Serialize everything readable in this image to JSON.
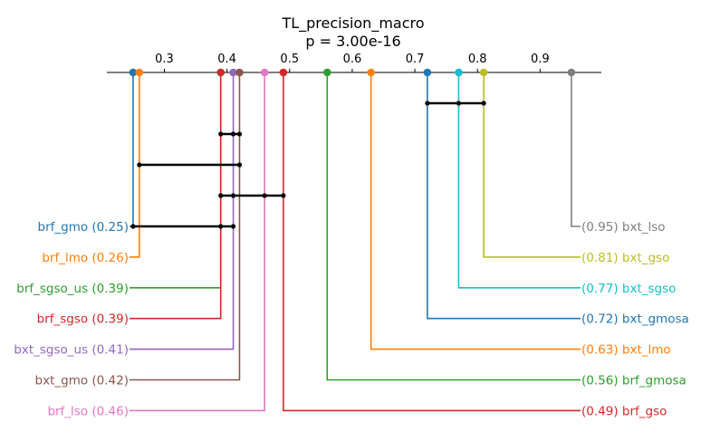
{
  "chart_data": {
    "type": "critical-difference",
    "title": "TL_precision_macro",
    "subtitle": "p = 3.00e-16",
    "xlim": [
      0.2,
      0.99
    ],
    "ticks": [
      0.3,
      0.4,
      0.5,
      0.6,
      0.7,
      0.8,
      0.9
    ],
    "tick_labels": [
      "0.3",
      "0.4",
      "0.5",
      "0.6",
      "0.7",
      "0.8",
      "0.9"
    ],
    "methods": [
      {
        "name": "brf_gmo",
        "value": 0.25,
        "label": "brf_gmo (0.25)",
        "color": "#1f77b4",
        "side": "left"
      },
      {
        "name": "brf_lmo",
        "value": 0.26,
        "label": "brf_lmo (0.26)",
        "color": "#ff7f0e",
        "side": "left"
      },
      {
        "name": "brf_sgso_us",
        "value": 0.39,
        "label": "brf_sgso_us (0.39)",
        "color": "#2ca02c",
        "side": "left"
      },
      {
        "name": "brf_sgso",
        "value": 0.39,
        "label": "brf_sgso (0.39)",
        "color": "#d62728",
        "side": "left"
      },
      {
        "name": "bxt_sgso_us",
        "value": 0.41,
        "label": "bxt_sgso_us (0.41)",
        "color": "#9467bd",
        "side": "left"
      },
      {
        "name": "bxt_gmo",
        "value": 0.42,
        "label": "bxt_gmo (0.42)",
        "color": "#8c564b",
        "side": "left"
      },
      {
        "name": "brf_lso",
        "value": 0.46,
        "label": "brf_lso (0.46)",
        "color": "#e377c2",
        "side": "left"
      },
      {
        "name": "bxt_lso",
        "value": 0.95,
        "label": "(0.95) bxt_lso",
        "color": "#7f7f7f",
        "side": "right"
      },
      {
        "name": "bxt_gso",
        "value": 0.81,
        "label": "(0.81) bxt_gso",
        "color": "#bcbd22",
        "side": "right"
      },
      {
        "name": "bxt_sgso",
        "value": 0.77,
        "label": "(0.77) bxt_sgso",
        "color": "#17becf",
        "side": "right"
      },
      {
        "name": "bxt_gmosa",
        "value": 0.72,
        "label": "(0.72) bxt_gmosa",
        "color": "#1f77b4",
        "side": "right"
      },
      {
        "name": "bxt_lmo",
        "value": 0.63,
        "label": "(0.63) bxt_lmo",
        "color": "#ff7f0e",
        "side": "right"
      },
      {
        "name": "brf_gmosa",
        "value": 0.56,
        "label": "(0.56) brf_gmosa",
        "color": "#2ca02c",
        "side": "right"
      },
      {
        "name": "brf_gso",
        "value": 0.49,
        "label": "(0.49) brf_gso",
        "color": "#d62728",
        "side": "right"
      }
    ],
    "cliques": [
      {
        "members": [
          "bxt_gmosa",
          "bxt_sgso",
          "bxt_gso"
        ],
        "points": [
          0.72,
          0.77,
          0.81
        ]
      },
      {
        "members": [
          "brf_sgso",
          "bxt_sgso_us",
          "bxt_gmo"
        ],
        "points": [
          0.39,
          0.41,
          0.42
        ]
      },
      {
        "members": [
          "brf_lmo",
          "brf_sgso_us",
          "brf_sgso",
          "bxt_sgso_us",
          "bxt_gmo"
        ],
        "points": [
          0.26,
          0.42
        ]
      },
      {
        "members": [
          "brf_sgso",
          "bxt_sgso_us",
          "bxt_gmo",
          "brf_lso",
          "brf_gso"
        ],
        "points": [
          0.39,
          0.41,
          0.46,
          0.49
        ]
      },
      {
        "members": [
          "brf_gmo",
          "brf_lmo",
          "brf_sgso_us",
          "brf_sgso",
          "bxt_sgso_us",
          "bxt_gmo"
        ],
        "points": [
          0.25,
          0.39,
          0.41
        ]
      }
    ]
  }
}
